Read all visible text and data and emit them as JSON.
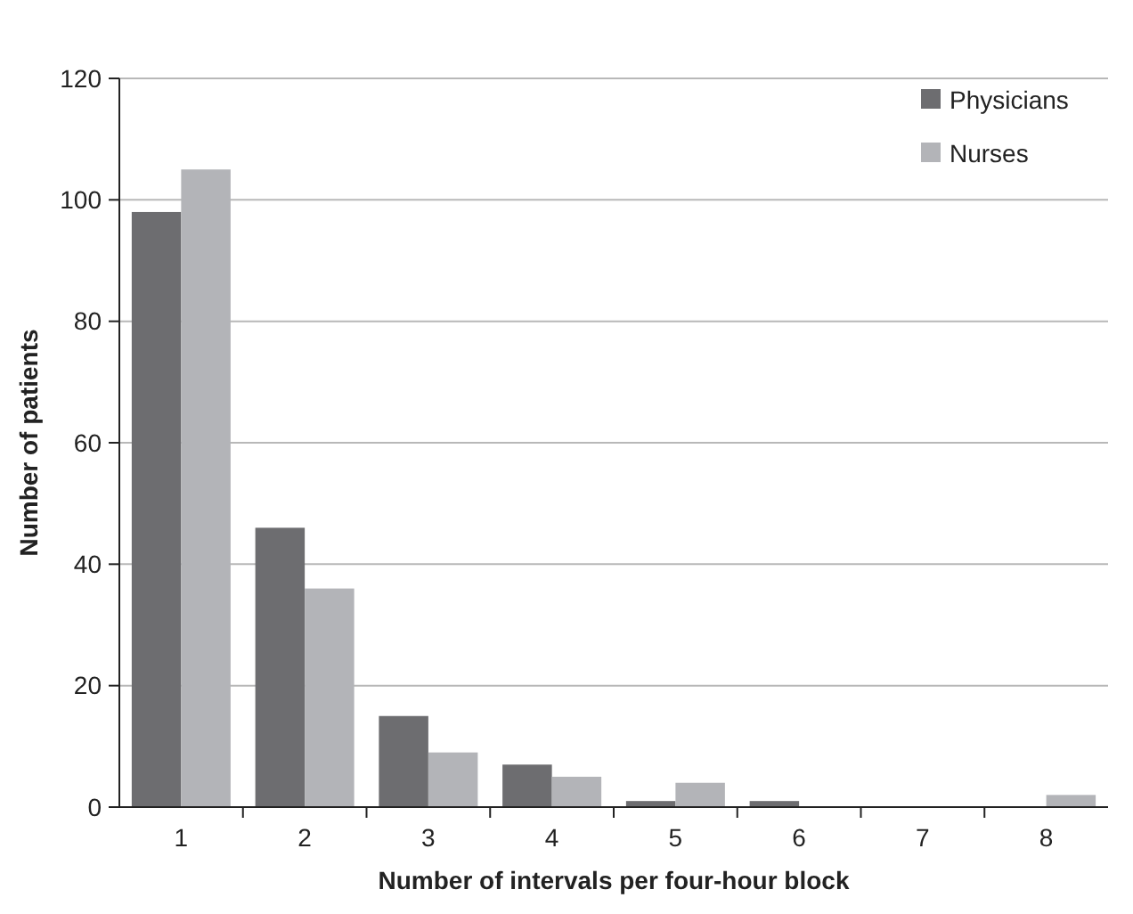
{
  "chart_data": {
    "type": "bar",
    "xlabel": "Number of intervals per four-hour block",
    "ylabel": "Number of patients",
    "categories": [
      "1",
      "2",
      "3",
      "4",
      "5",
      "6",
      "7",
      "8"
    ],
    "series": [
      {
        "name": "Physicians",
        "color": "#6d6d70",
        "values": [
          98,
          46,
          15,
          7,
          1,
          1,
          0,
          0
        ]
      },
      {
        "name": "Nurses",
        "color": "#b3b4b8",
        "values": [
          105,
          36,
          9,
          5,
          4,
          0,
          0,
          2
        ]
      }
    ],
    "ylim": [
      0,
      120
    ],
    "yticks": [
      0,
      20,
      40,
      60,
      80,
      100,
      120
    ],
    "grid": "y",
    "legend": "top right"
  }
}
